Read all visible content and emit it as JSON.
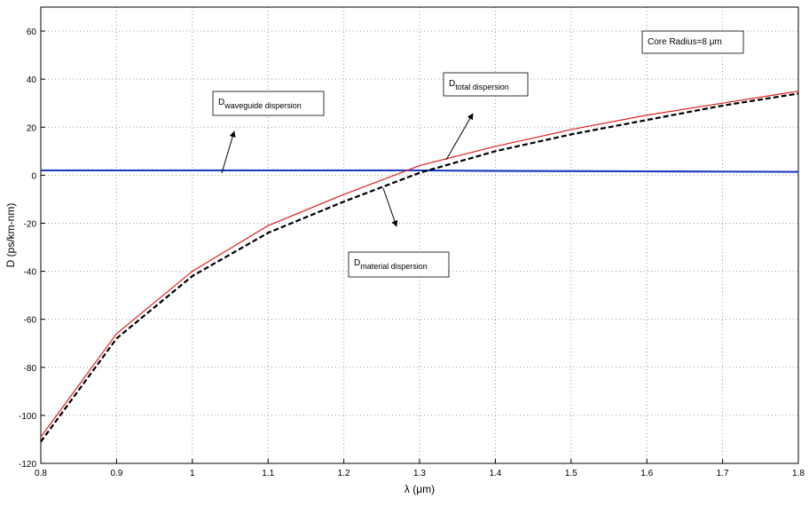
{
  "chart_data": {
    "type": "line",
    "xlabel": "λ (μm)",
    "ylabel": "D (ps/km-nm)",
    "x": [
      0.8,
      0.9,
      1.0,
      1.1,
      1.2,
      1.3,
      1.4,
      1.5,
      1.6,
      1.7,
      1.8
    ],
    "series": [
      {
        "name": "waveguide dispersion",
        "color": "#1f3fbf",
        "dash": false,
        "values": [
          2,
          2,
          2,
          2,
          2,
          2,
          1.8,
          1.7,
          1.6,
          1.5,
          1.4
        ]
      },
      {
        "name": "total dispersion",
        "color": "#e02020",
        "dash": false,
        "values": [
          -109,
          -66,
          -40,
          -21,
          -8,
          4,
          12,
          19,
          25,
          30,
          35
        ]
      },
      {
        "name": "material dispersion",
        "color": "#000000",
        "dash": true,
        "values": [
          -111,
          -68,
          -42,
          -24,
          -11,
          1,
          10,
          17,
          23,
          29,
          34
        ]
      }
    ],
    "xlim": [
      0.8,
      1.8
    ],
    "xticks": [
      0.8,
      0.9,
      1,
      1.1,
      1.2,
      1.3,
      1.4,
      1.5,
      1.6,
      1.7,
      1.8
    ],
    "ylim": [
      -120,
      70
    ],
    "yticks": [
      -120,
      -100,
      -80,
      -60,
      -40,
      -20,
      0,
      20,
      40,
      60
    ],
    "grid": true,
    "annotations": [
      {
        "main": "D",
        "sub": "waveguide dispersion"
      },
      {
        "main": "D",
        "sub": "total dispersion"
      },
      {
        "main": "D",
        "sub": "material dispersion"
      },
      {
        "main": "Core Radius=8 μm"
      }
    ]
  }
}
